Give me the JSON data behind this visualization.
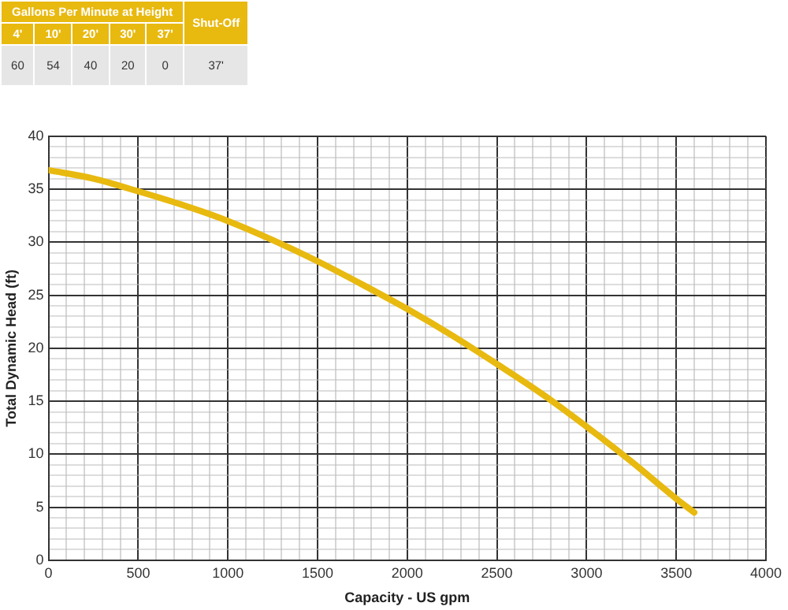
{
  "chart_data": {
    "type": "line",
    "xlabel": "Capacity - US gpm",
    "ylabel": "Total Dynamic Head (ft)",
    "annotations": [
      "Gallons Per Minute at Height",
      "Shut-Off",
      "4'",
      "10'",
      "20'",
      "30'",
      "37'",
      "60",
      "54",
      "40",
      "20",
      "0",
      "37'"
    ],
    "x": [
      0,
      250,
      500,
      750,
      1000,
      1250,
      1500,
      1750,
      2000,
      2250,
      2500,
      2750,
      3000,
      3250,
      3500,
      3600
    ],
    "series": [
      {
        "color": "#e8b90f",
        "values": [
          36.8,
          36,
          34.8,
          33.5,
          32,
          30.2,
          28.2,
          26,
          23.7,
          21.2,
          18.5,
          15.7,
          12.6,
          9.3,
          5.8,
          4.5
        ]
      }
    ],
    "xlim": [
      0,
      4000
    ],
    "xticks": [
      0,
      {
        "value": 100,
        "label": null
      },
      {
        "value": 200,
        "label": null
      },
      {
        "value": 300,
        "label": null
      },
      {
        "value": 400,
        "label": null
      },
      500,
      {
        "value": 600,
        "label": null
      },
      {
        "value": 700,
        "label": null
      },
      {
        "value": 800,
        "label": null
      },
      {
        "value": 900,
        "label": null
      },
      1000,
      {
        "value": 1100,
        "label": null
      },
      {
        "value": 1200,
        "label": null
      },
      {
        "value": 1300,
        "label": null
      },
      {
        "value": 1400,
        "label": null
      },
      1500,
      {
        "value": 1600,
        "label": null
      },
      {
        "value": 1700,
        "label": null
      },
      {
        "value": 1800,
        "label": null
      },
      {
        "value": 1900,
        "label": null
      },
      2000,
      {
        "value": 2100,
        "label": null
      },
      {
        "value": 2200,
        "label": null
      },
      {
        "value": 2300,
        "label": null
      },
      {
        "value": 2400,
        "label": null
      },
      2500,
      {
        "value": 2600,
        "label": null
      },
      {
        "value": 2700,
        "label": null
      },
      {
        "value": 2800,
        "label": null
      },
      {
        "value": 2900,
        "label": null
      },
      3000,
      {
        "value": 3100,
        "label": null
      },
      {
        "value": 3200,
        "label": null
      },
      {
        "value": 3300,
        "label": null
      },
      {
        "value": 3400,
        "label": null
      },
      3500,
      {
        "value": 3600,
        "label": null
      },
      {
        "value": 3700,
        "label": null
      },
      {
        "value": 3800,
        "label": null
      },
      {
        "value": 3900,
        "label": null
      },
      4000
    ],
    "ylim": [
      0,
      40
    ],
    "yticks": [
      0,
      {
        "value": 1,
        "label": null
      },
      {
        "value": 2,
        "label": null
      },
      {
        "value": 3,
        "label": null
      },
      {
        "value": 4,
        "label": null
      },
      5,
      {
        "value": 6,
        "label": null
      },
      {
        "value": 7,
        "label": null
      },
      {
        "value": 8,
        "label": null
      },
      {
        "value": 9,
        "label": null
      },
      10,
      {
        "value": 11,
        "label": null
      },
      {
        "value": 12,
        "label": null
      },
      {
        "value": 13,
        "label": null
      },
      {
        "value": 14,
        "label": null
      },
      15,
      {
        "value": 16,
        "label": null
      },
      {
        "value": 17,
        "label": null
      },
      {
        "value": 18,
        "label": null
      },
      {
        "value": 19,
        "label": null
      },
      20,
      {
        "value": 21,
        "label": null
      },
      {
        "value": 22,
        "label": null
      },
      {
        "value": 23,
        "label": null
      },
      {
        "value": 24,
        "label": null
      },
      25,
      {
        "value": 26,
        "label": null
      },
      {
        "value": 27,
        "label": null
      },
      {
        "value": 28,
        "label": null
      },
      {
        "value": 29,
        "label": null
      },
      30,
      {
        "value": 31,
        "label": null
      },
      {
        "value": 32,
        "label": null
      },
      {
        "value": 33,
        "label": null
      },
      {
        "value": 34,
        "label": null
      },
      35,
      {
        "value": 36,
        "label": null
      },
      {
        "value": 37,
        "label": null
      },
      {
        "value": 38,
        "label": null
      },
      {
        "value": 39,
        "label": null
      },
      40
    ],
    "grid": true,
    "marker": "none",
    "line_style": "solid",
    "legend": false
  }
}
